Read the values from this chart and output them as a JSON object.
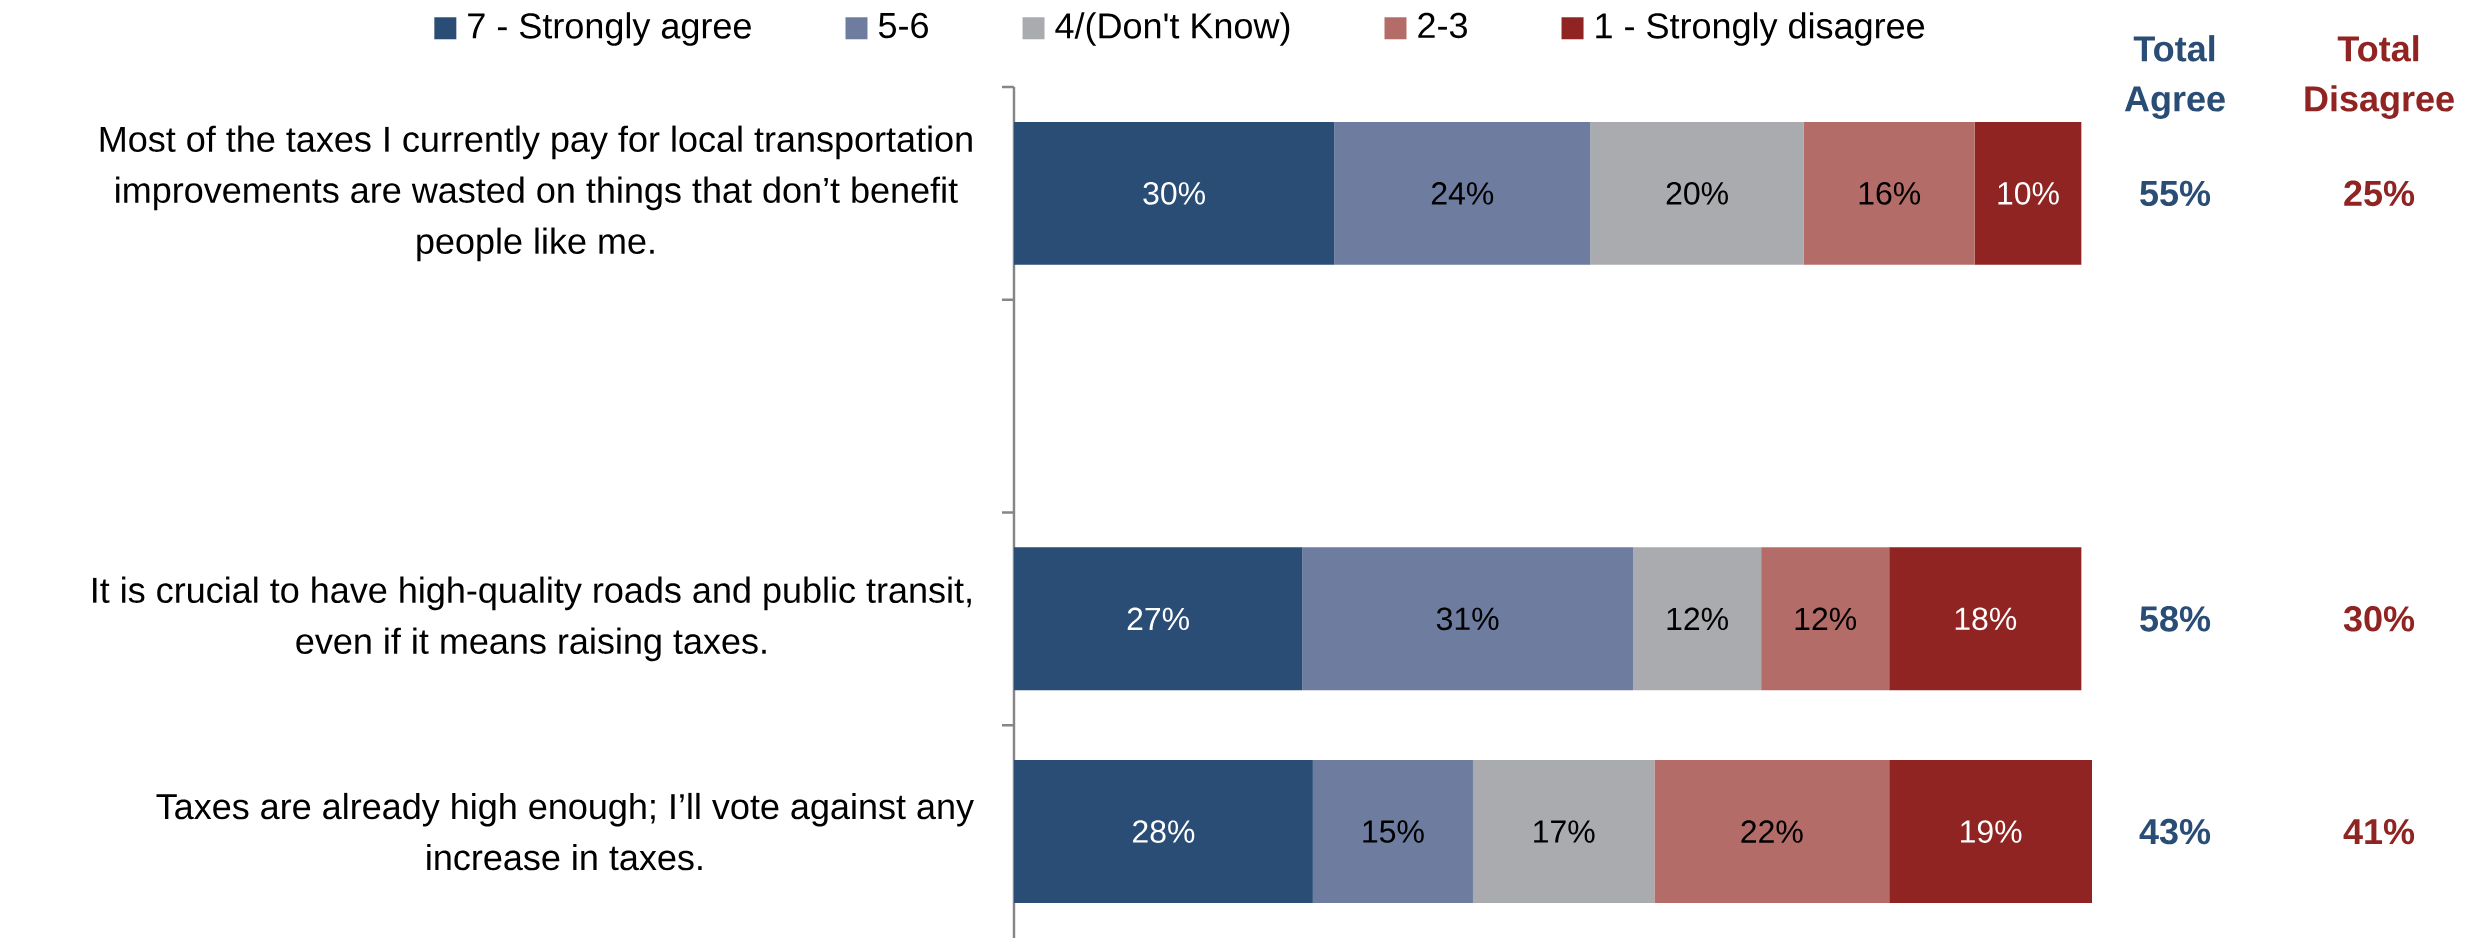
{
  "chart_data": {
    "type": "bar",
    "orientation": "horizontal",
    "stacked": true,
    "categories": [
      "Most of the taxes I currently pay for local transportation improvements are wasted on things that don’t benefit people like me.",
      null,
      "It is crucial to have high-quality roads and public transit, even if it means raising taxes.",
      "Taxes are already high enough; I’ll vote against any increase in taxes."
    ],
    "series": [
      {
        "name": "7 - Strongly agree",
        "color": "#2A4D76",
        "values": [
          30,
          null,
          27,
          28
        ],
        "value_labels": [
          "30%",
          null,
          "27%",
          "28%"
        ]
      },
      {
        "name": "5-6",
        "color": "#6D7C9F",
        "values": [
          24,
          null,
          31,
          15
        ],
        "value_labels": [
          "24%",
          null,
          "31%",
          "15%"
        ]
      },
      {
        "name": "4/(Don't Know)",
        "color": "#AAABAE",
        "values": [
          20,
          null,
          12,
          17
        ],
        "value_labels": [
          "20%",
          null,
          "12%",
          "17%"
        ]
      },
      {
        "name": "2-3",
        "color": "#B46C68",
        "values": [
          16,
          null,
          12,
          22
        ],
        "value_labels": [
          "16%",
          null,
          "12%",
          "22%"
        ]
      },
      {
        "name": "1 - Strongly disagree",
        "color": "#8F2422",
        "values": [
          10,
          null,
          18,
          19
        ],
        "value_labels": [
          "10%",
          null,
          "18%",
          "19%"
        ]
      }
    ],
    "legend": "top",
    "tick_labels": "y",
    "annotations": [
      "Total Agree",
      "Total Disagree",
      "55%",
      "25%",
      "58%",
      "30%",
      "43%",
      "41%"
    ]
  }
}
